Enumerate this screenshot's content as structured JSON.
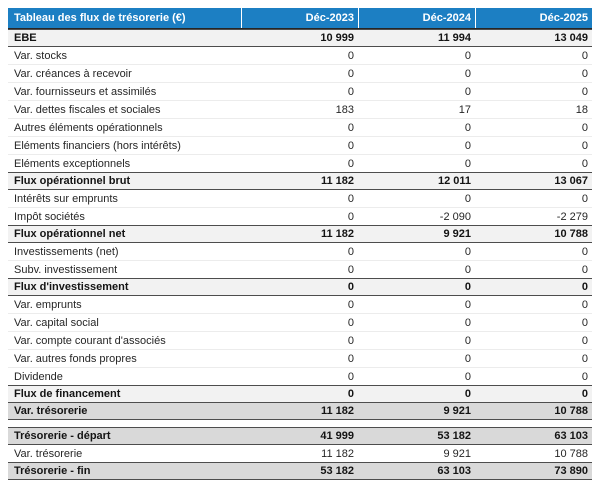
{
  "table": {
    "title": "Tableau des flux de trésorerie (€)",
    "columns": [
      "Déc-2023",
      "Déc-2024",
      "Déc-2025"
    ],
    "rows": [
      {
        "label": "EBE",
        "values": [
          "10 999",
          "11 994",
          "13 049"
        ],
        "style": "subtotal"
      },
      {
        "label": "Var. stocks",
        "values": [
          "0",
          "0",
          "0"
        ],
        "style": "normal"
      },
      {
        "label": "Var. créances à recevoir",
        "values": [
          "0",
          "0",
          "0"
        ],
        "style": "normal"
      },
      {
        "label": "Var. fournisseurs et assimilés",
        "values": [
          "0",
          "0",
          "0"
        ],
        "style": "normal"
      },
      {
        "label": "Var. dettes fiscales et sociales",
        "values": [
          "183",
          "17",
          "18"
        ],
        "style": "normal"
      },
      {
        "label": "Autres éléments opérationnels",
        "values": [
          "0",
          "0",
          "0"
        ],
        "style": "normal"
      },
      {
        "label": "Eléments financiers (hors intérêts)",
        "values": [
          "0",
          "0",
          "0"
        ],
        "style": "normal"
      },
      {
        "label": "Eléments exceptionnels",
        "values": [
          "0",
          "0",
          "0"
        ],
        "style": "normal"
      },
      {
        "label": "Flux opérationnel brut",
        "values": [
          "11 182",
          "12 011",
          "13 067"
        ],
        "style": "subtotal"
      },
      {
        "label": "Intérêts sur emprunts",
        "values": [
          "0",
          "0",
          "0"
        ],
        "style": "normal"
      },
      {
        "label": "Impôt sociétés",
        "values": [
          "0",
          "-2 090",
          "-2 279"
        ],
        "style": "normal"
      },
      {
        "label": "Flux opérationnel net",
        "values": [
          "11 182",
          "9 921",
          "10 788"
        ],
        "style": "subtotal"
      },
      {
        "label": "Investissements (net)",
        "values": [
          "0",
          "0",
          "0"
        ],
        "style": "normal"
      },
      {
        "label": "Subv. investissement",
        "values": [
          "0",
          "0",
          "0"
        ],
        "style": "normal"
      },
      {
        "label": "Flux d'investissement",
        "values": [
          "0",
          "0",
          "0"
        ],
        "style": "subtotal"
      },
      {
        "label": "Var. emprunts",
        "values": [
          "0",
          "0",
          "0"
        ],
        "style": "normal"
      },
      {
        "label": "Var. capital social",
        "values": [
          "0",
          "0",
          "0"
        ],
        "style": "normal"
      },
      {
        "label": "Var. compte courant d'associés",
        "values": [
          "0",
          "0",
          "0"
        ],
        "style": "normal"
      },
      {
        "label": "Var. autres fonds propres",
        "values": [
          "0",
          "0",
          "0"
        ],
        "style": "normal"
      },
      {
        "label": "Dividende",
        "values": [
          "0",
          "0",
          "0"
        ],
        "style": "normal"
      },
      {
        "label": "Flux de financement",
        "values": [
          "0",
          "0",
          "0"
        ],
        "style": "subtotal"
      },
      {
        "label": "Var. trésorerie",
        "values": [
          "11 182",
          "9 921",
          "10 788"
        ],
        "style": "summary"
      },
      {
        "style": "spacer"
      },
      {
        "label": "Trésorerie - départ",
        "values": [
          "41 999",
          "53 182",
          "63 103"
        ],
        "style": "summary"
      },
      {
        "label": "Var. trésorerie",
        "values": [
          "11 182",
          "9 921",
          "10 788"
        ],
        "style": "normal"
      },
      {
        "label": "Trésorerie - fin",
        "values": [
          "53 182",
          "63 103",
          "73 890"
        ],
        "style": "summary"
      }
    ]
  },
  "chart_data": {
    "type": "table",
    "title": "Tableau des flux de trésorerie (€)",
    "columns": [
      "Déc-2023",
      "Déc-2024",
      "Déc-2025"
    ],
    "rows": [
      {
        "label": "EBE",
        "values": [
          10999,
          11994,
          13049
        ]
      },
      {
        "label": "Var. stocks",
        "values": [
          0,
          0,
          0
        ]
      },
      {
        "label": "Var. créances à recevoir",
        "values": [
          0,
          0,
          0
        ]
      },
      {
        "label": "Var. fournisseurs et assimilés",
        "values": [
          0,
          0,
          0
        ]
      },
      {
        "label": "Var. dettes fiscales et sociales",
        "values": [
          183,
          17,
          18
        ]
      },
      {
        "label": "Autres éléments opérationnels",
        "values": [
          0,
          0,
          0
        ]
      },
      {
        "label": "Eléments financiers (hors intérêts)",
        "values": [
          0,
          0,
          0
        ]
      },
      {
        "label": "Eléments exceptionnels",
        "values": [
          0,
          0,
          0
        ]
      },
      {
        "label": "Flux opérationnel brut",
        "values": [
          11182,
          12011,
          13067
        ]
      },
      {
        "label": "Intérêts sur emprunts",
        "values": [
          0,
          0,
          0
        ]
      },
      {
        "label": "Impôt sociétés",
        "values": [
          0,
          -2090,
          -2279
        ]
      },
      {
        "label": "Flux opérationnel net",
        "values": [
          11182,
          9921,
          10788
        ]
      },
      {
        "label": "Investissements (net)",
        "values": [
          0,
          0,
          0
        ]
      },
      {
        "label": "Subv. investissement",
        "values": [
          0,
          0,
          0
        ]
      },
      {
        "label": "Flux d'investissement",
        "values": [
          0,
          0,
          0
        ]
      },
      {
        "label": "Var. emprunts",
        "values": [
          0,
          0,
          0
        ]
      },
      {
        "label": "Var. capital social",
        "values": [
          0,
          0,
          0
        ]
      },
      {
        "label": "Var. compte courant d'associés",
        "values": [
          0,
          0,
          0
        ]
      },
      {
        "label": "Var. autres fonds propres",
        "values": [
          0,
          0,
          0
        ]
      },
      {
        "label": "Dividende",
        "values": [
          0,
          0,
          0
        ]
      },
      {
        "label": "Flux de financement",
        "values": [
          0,
          0,
          0
        ]
      },
      {
        "label": "Var. trésorerie",
        "values": [
          11182,
          9921,
          10788
        ]
      },
      {
        "label": "Trésorerie - départ",
        "values": [
          41999,
          53182,
          63103
        ]
      },
      {
        "label": "Var. trésorerie",
        "values": [
          11182,
          9921,
          10788
        ]
      },
      {
        "label": "Trésorerie - fin",
        "values": [
          53182,
          63103,
          73890
        ]
      }
    ]
  },
  "colors": {
    "header_bg": "#1c7fc3",
    "header_text": "#ffffff",
    "subtotal_row_bg": "#f2f2f2",
    "summary_row_bg": "#d9d9d9",
    "dark_border": "#4d4d4d",
    "light_border": "#ececec"
  }
}
